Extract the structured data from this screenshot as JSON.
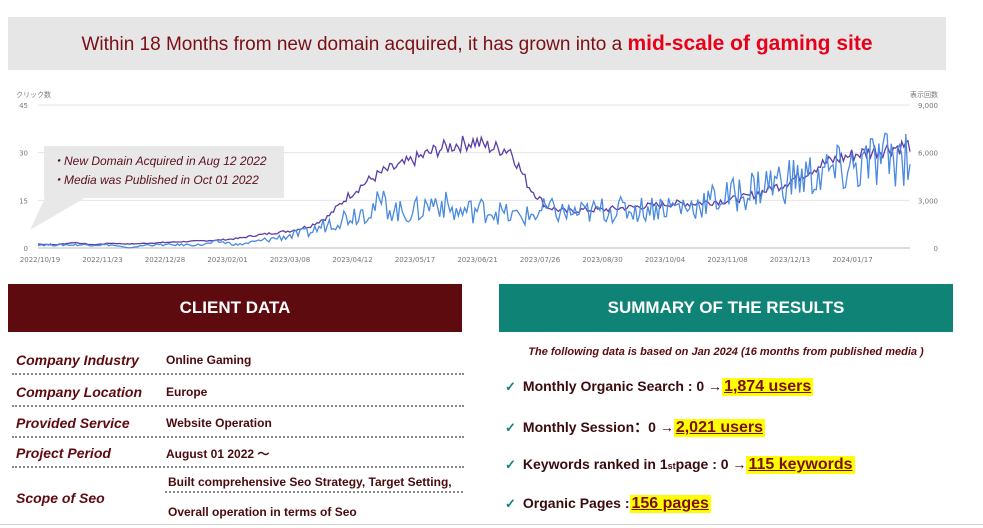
{
  "banner": {
    "text": "Within 18 Months from new domain acquired, it has grown into a ",
    "highlight": "mid-scale of gaming site"
  },
  "callout": {
    "line1": "・New Domain Acquired in Aug 12 2022",
    "line2": "・Media was Published in Oct 01 2022"
  },
  "chart_data": {
    "type": "line",
    "left_axis_label": "クリック数",
    "right_axis_label": "表示回数",
    "left_ticks": [
      "45",
      "30",
      "15",
      "0"
    ],
    "right_ticks": [
      "9,000",
      "6,000",
      "3,000",
      "0"
    ],
    "ylim_left": [
      0,
      45
    ],
    "ylim_right": [
      0,
      9000
    ],
    "grid": true,
    "x_ticks": [
      "2022/10/19",
      "2022/11/23",
      "2022/12/28",
      "2023/02/01",
      "2023/03/08",
      "2023/04/12",
      "2023/05/17",
      "2023/06/21",
      "2023/07/26",
      "2023/08/30",
      "2023/10/04",
      "2023/11/08",
      "2023/12/13",
      "2024/01/17"
    ],
    "series": [
      {
        "color": "#5b3ea6",
        "axis": "right",
        "values": [
          250,
          200,
          350,
          200,
          300,
          250,
          300,
          350,
          400,
          450,
          500,
          600,
          800,
          950,
          1100,
          1400,
          2000,
          3200,
          4100,
          4800,
          5200,
          5700,
          6200,
          6500,
          6700,
          6300,
          6200,
          3900,
          2600,
          2300,
          2400,
          2400,
          2500,
          2600,
          2700,
          2800,
          2800,
          2900,
          3000,
          3200,
          3600,
          4000,
          4600,
          5200,
          5600,
          5900,
          6100,
          6300,
          6500
        ]
      },
      {
        "color": "#4a8ae0",
        "axis": "left",
        "values": [
          1,
          1,
          1,
          1,
          1,
          0,
          1,
          1,
          1,
          1,
          2,
          1,
          2,
          3,
          4,
          5,
          8,
          10,
          12,
          14,
          11,
          12,
          15,
          11,
          12,
          12,
          10,
          10,
          12,
          11,
          11,
          12,
          12,
          12,
          13,
          13,
          13,
          15,
          16,
          18,
          20,
          21,
          22,
          23,
          24,
          25,
          27,
          28,
          30
        ]
      }
    ]
  },
  "client": {
    "header": "CLIENT DATA",
    "rows": [
      {
        "label": "Company Industry",
        "value": "Online Gaming"
      },
      {
        "label": "Company Location",
        "value": "Europe"
      },
      {
        "label": "Provided Service",
        "value": "Website Operation"
      },
      {
        "label": "Project Period",
        "value": "August 01 2022 〜"
      }
    ],
    "scope": {
      "label": "Scope of Seo",
      "line1": "Built comprehensive Seo Strategy, Target Setting,",
      "line2": "Overall operation in terms of Seo"
    }
  },
  "summary": {
    "header": "SUMMARY OF THE RESULTS",
    "note": "The following data is based on Jan 2024 (16 months from published media )",
    "check": "✓",
    "items": [
      {
        "label": "Monthly Organic Search : 0 → ",
        "value": "1,874 users"
      },
      {
        "label": "Monthly Session：0 → ",
        "value": "2,021 users"
      },
      {
        "label_a": "Keywords ranked in 1",
        "label_sup": "st",
        "label_b": " page : 0 → ",
        "value": "115 keywords"
      },
      {
        "label": "Organic Pages : ",
        "value": "156 pages"
      }
    ]
  }
}
